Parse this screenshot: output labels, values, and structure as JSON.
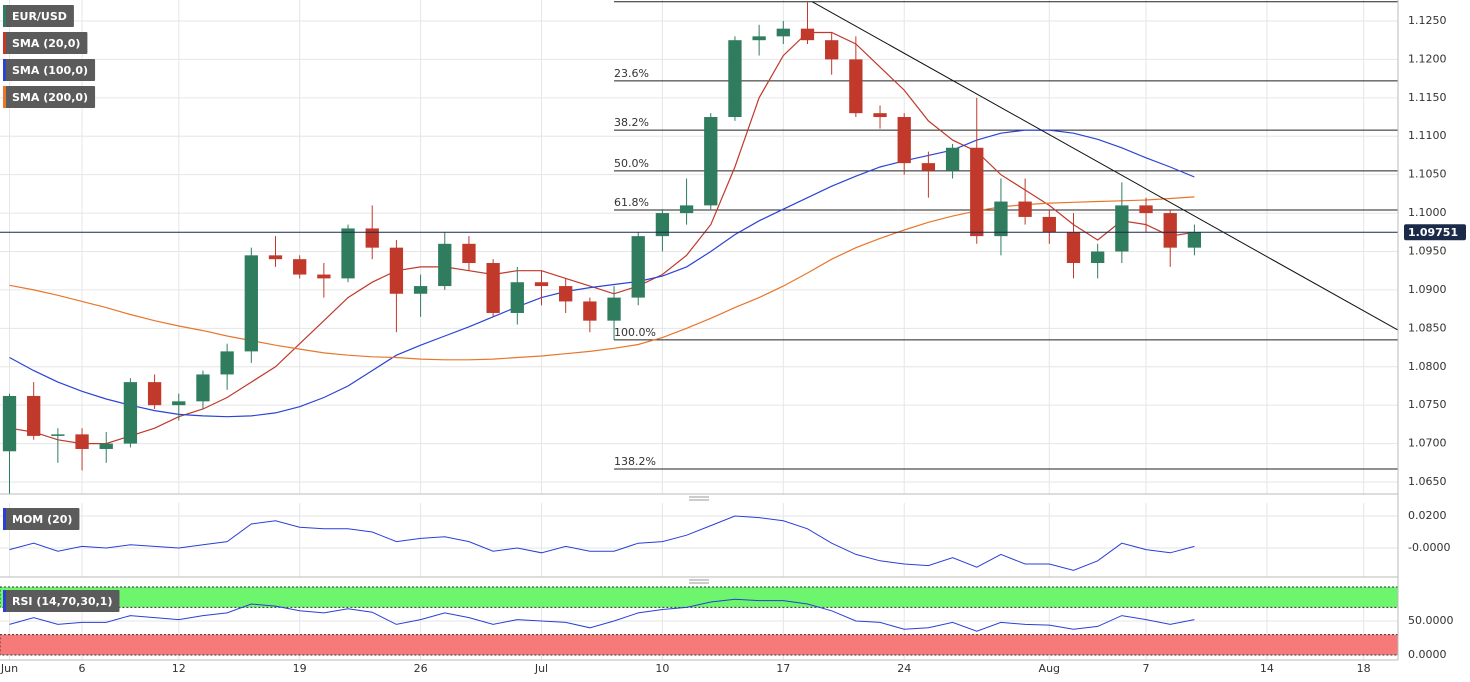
{
  "chart_data": [
    {
      "type": "candlestick",
      "title": "EUR/USD",
      "up_color": "#2f7d5e",
      "down_color": "#c0392b",
      "x": [
        0,
        1,
        2,
        3,
        4,
        5,
        6,
        7,
        8,
        9,
        10,
        11,
        12,
        13,
        14,
        15,
        16,
        17,
        18,
        19,
        20,
        21,
        22,
        23,
        24,
        25,
        26,
        27,
        28,
        29,
        30,
        31,
        32,
        33,
        34,
        35,
        36,
        37,
        38,
        39,
        40,
        41,
        42,
        43,
        44,
        45,
        46,
        47,
        48,
        49
      ],
      "open": [
        1.069,
        1.0762,
        1.071,
        1.0712,
        1.0693,
        1.07,
        1.078,
        1.075,
        1.0755,
        1.079,
        1.082,
        1.0945,
        1.094,
        1.092,
        1.0915,
        1.098,
        1.0955,
        1.0895,
        1.0905,
        1.096,
        1.0935,
        1.087,
        1.091,
        1.0905,
        1.0885,
        1.086,
        1.089,
        1.097,
        1.1,
        1.101,
        1.1125,
        1.1225,
        1.123,
        1.124,
        1.1225,
        1.12,
        1.113,
        1.1125,
        1.1065,
        1.1055,
        1.1085,
        1.097,
        1.1015,
        1.0995,
        1.0975,
        1.0935,
        1.095,
        1.101,
        1.1,
        1.0955
      ],
      "high": [
        1.0765,
        1.078,
        1.072,
        1.072,
        1.0715,
        1.0785,
        1.079,
        1.0765,
        1.0795,
        1.083,
        1.0955,
        1.097,
        1.0945,
        1.0935,
        1.0985,
        1.101,
        1.0965,
        1.092,
        1.0975,
        1.097,
        1.094,
        1.093,
        1.0925,
        1.0915,
        1.089,
        1.0905,
        1.0975,
        1.1005,
        1.1045,
        1.113,
        1.123,
        1.1245,
        1.125,
        1.1275,
        1.1235,
        1.123,
        1.114,
        1.113,
        1.108,
        1.109,
        1.115,
        1.1045,
        1.1045,
        1.1005,
        1.1,
        1.096,
        1.104,
        1.102,
        1.1005,
        1.0985
      ],
      "low": [
        1.0635,
        1.0705,
        1.0675,
        1.0665,
        1.0675,
        1.0695,
        1.0745,
        1.073,
        1.0745,
        1.077,
        1.0805,
        1.093,
        1.0915,
        1.089,
        1.091,
        1.094,
        1.0845,
        1.0865,
        1.09,
        1.0925,
        1.0865,
        1.0855,
        1.088,
        1.087,
        1.0845,
        1.0835,
        1.088,
        1.095,
        1.0985,
        1.1005,
        1.112,
        1.1205,
        1.122,
        1.122,
        1.118,
        1.1125,
        1.111,
        1.105,
        1.102,
        1.1045,
        1.096,
        1.0945,
        1.0985,
        1.096,
        1.0915,
        1.0915,
        1.0935,
        1.0975,
        1.093,
        1.0945
      ],
      "close": [
        1.0762,
        1.071,
        1.0712,
        1.0693,
        1.07,
        1.078,
        1.075,
        1.0755,
        1.079,
        1.082,
        1.0945,
        1.094,
        1.092,
        1.0915,
        1.098,
        1.0955,
        1.0895,
        1.0905,
        1.096,
        1.0935,
        1.087,
        1.091,
        1.0905,
        1.0885,
        1.086,
        1.089,
        1.097,
        1.1,
        1.101,
        1.1125,
        1.1225,
        1.123,
        1.124,
        1.1225,
        1.12,
        1.113,
        1.1125,
        1.1065,
        1.1055,
        1.1085,
        1.097,
        1.1015,
        1.0995,
        1.0975,
        1.0935,
        1.095,
        1.101,
        1.1,
        1.0955,
        1.0975
      ],
      "overlays": [
        {
          "name": "SMA (20,0)",
          "color": "#c0392b",
          "values": [
            1.072,
            1.0715,
            1.0705,
            1.07,
            1.07,
            1.071,
            1.072,
            1.0735,
            1.0745,
            1.076,
            1.078,
            1.08,
            1.083,
            1.086,
            1.089,
            1.091,
            1.0925,
            1.093,
            1.093,
            1.0925,
            1.092,
            1.0925,
            1.0925,
            1.0915,
            1.0905,
            1.0895,
            1.0905,
            1.092,
            1.0945,
            1.0985,
            1.106,
            1.115,
            1.1205,
            1.1235,
            1.1235,
            1.122,
            1.119,
            1.116,
            1.112,
            1.1095,
            1.108,
            1.105,
            1.103,
            1.101,
            1.0985,
            1.0965,
            1.099,
            1.0985,
            1.097,
            1.0975
          ]
        },
        {
          "name": "SMA (100,0)",
          "color": "#2a44d4",
          "values": [
            1.0812,
            1.0795,
            1.078,
            1.0768,
            1.0758,
            1.075,
            1.0743,
            1.0738,
            1.0736,
            1.0735,
            1.0736,
            1.074,
            1.0748,
            1.076,
            1.0775,
            1.0795,
            1.0815,
            1.0828,
            1.084,
            1.0852,
            1.0865,
            1.0878,
            1.089,
            1.0898,
            1.0903,
            1.0907,
            1.0911,
            1.0918,
            1.093,
            1.095,
            1.0972,
            1.099,
            1.1005,
            1.102,
            1.1035,
            1.1048,
            1.106,
            1.1068,
            1.1075,
            1.1082,
            1.1095,
            1.1104,
            1.1108,
            1.1108,
            1.1104,
            1.1096,
            1.1085,
            1.1072,
            1.106,
            1.1047
          ]
        },
        {
          "name": "SMA (200,0)",
          "color": "#e8762c",
          "values": [
            1.0906,
            1.09,
            1.0893,
            1.0885,
            1.0877,
            1.0868,
            1.086,
            1.0853,
            1.0847,
            1.084,
            1.0834,
            1.0828,
            1.0823,
            1.0818,
            1.0815,
            1.0813,
            1.0812,
            1.081,
            1.0809,
            1.0809,
            1.081,
            1.0812,
            1.0814,
            1.0817,
            1.082,
            1.0824,
            1.0829,
            1.0838,
            1.085,
            1.0863,
            1.0877,
            1.089,
            1.0905,
            1.0922,
            1.094,
            1.0955,
            1.0967,
            1.0978,
            1.0988,
            1.0996,
            1.1003,
            1.1008,
            1.1011,
            1.1013,
            1.1014,
            1.1015,
            1.1016,
            1.1017,
            1.1019,
            1.1021
          ]
        }
      ],
      "fib_start": 25,
      "fib_high": 1.1275,
      "fib_levels": [
        {
          "label": "23.6%",
          "value": 1.1172
        },
        {
          "label": "38.2%",
          "value": 1.1108
        },
        {
          "label": "50.0%",
          "value": 1.1055
        },
        {
          "label": "61.8%",
          "value": 1.1004
        },
        {
          "label": "100.0%",
          "value": 1.0835
        },
        {
          "label": "138.2%",
          "value": 1.0667
        }
      ],
      "trendline": {
        "x": [
          33.2,
          57.4
        ],
        "y": [
          1.1275,
          1.0848
        ]
      },
      "last_price": 1.09751,
      "xlim": [
        -0.393,
        57.42
      ],
      "ylim": [
        1.06344,
        1.12773
      ],
      "xticks": [
        {
          "value": 0,
          "label": "Jun"
        },
        {
          "value": 3,
          "label": "6"
        },
        {
          "value": 7,
          "label": "12"
        },
        {
          "value": 12,
          "label": "19"
        },
        {
          "value": 17,
          "label": "26"
        },
        {
          "value": 22,
          "label": "Jul"
        },
        {
          "value": 27,
          "label": "10"
        },
        {
          "value": 32,
          "label": "17"
        },
        {
          "value": 37,
          "label": "24"
        },
        {
          "value": 43,
          "label": "Aug"
        },
        {
          "value": 47,
          "label": "7"
        },
        {
          "value": 52,
          "label": "14"
        },
        {
          "value": 56,
          "label": "18"
        }
      ],
      "yticks": [
        {
          "value": 1.065,
          "label": "1.0650"
        },
        {
          "value": 1.07,
          "label": "1.0700"
        },
        {
          "value": 1.075,
          "label": "1.0750"
        },
        {
          "value": 1.08,
          "label": "1.0800"
        },
        {
          "value": 1.085,
          "label": "1.0850"
        },
        {
          "value": 1.09,
          "label": "1.0900"
        },
        {
          "value": 1.095,
          "label": "1.0950"
        },
        {
          "value": 1.1,
          "label": "1.1000"
        },
        {
          "value": 1.105,
          "label": "1.1050"
        },
        {
          "value": 1.11,
          "label": "1.1100"
        },
        {
          "value": 1.115,
          "label": "1.1150"
        },
        {
          "value": 1.12,
          "label": "1.1200"
        },
        {
          "value": 1.125,
          "label": "1.1250"
        }
      ],
      "grid": true
    },
    {
      "type": "line",
      "series": [
        {
          "name": "MOM (20)",
          "color": "#2a3fd6",
          "values": [
            -0.001,
            0.003,
            -0.002,
            0.001,
            0.0,
            0.002,
            0.001,
            0.0,
            0.002,
            0.004,
            0.015,
            0.017,
            0.013,
            0.012,
            0.012,
            0.01,
            0.004,
            0.006,
            0.007,
            0.004,
            -0.002,
            0.0,
            -0.003,
            0.001,
            -0.002,
            -0.002,
            0.003,
            0.004,
            0.008,
            0.014,
            0.02,
            0.019,
            0.017,
            0.012,
            0.003,
            -0.004,
            -0.008,
            -0.01,
            -0.011,
            -0.006,
            -0.012,
            -0.004,
            -0.01,
            -0.01,
            -0.014,
            -0.008,
            0.003,
            -0.001,
            -0.003,
            0.001
          ]
        }
      ],
      "ylim": [
        -0.0181,
        0.0281
      ],
      "yticks": [
        {
          "value": 0.02,
          "label": "0.0200"
        },
        {
          "value": 0,
          "label": "-0.0000"
        }
      ]
    },
    {
      "type": "line",
      "series": [
        {
          "name": "RSI (14,70,30,1)",
          "color": "#2a3fd6",
          "values": [
            45,
            55,
            45,
            48,
            48,
            58,
            55,
            52,
            58,
            62,
            75,
            72,
            65,
            62,
            68,
            63,
            45,
            52,
            62,
            55,
            45,
            52,
            50,
            48,
            40,
            50,
            62,
            67,
            70,
            78,
            82,
            80,
            80,
            75,
            65,
            50,
            48,
            38,
            40,
            48,
            35,
            48,
            45,
            44,
            38,
            42,
            58,
            52,
            45,
            52
          ]
        }
      ],
      "bands": [
        {
          "from": 70,
          "to": 100,
          "color": "#6ef56e"
        },
        {
          "from": 0,
          "to": 30,
          "color": "#f77a7a"
        }
      ],
      "ylim": [
        -7.4,
        103
      ],
      "yticks": [
        {
          "value": 50,
          "label": "50.0000"
        },
        {
          "value": 0,
          "label": "0.0000"
        }
      ]
    }
  ]
}
